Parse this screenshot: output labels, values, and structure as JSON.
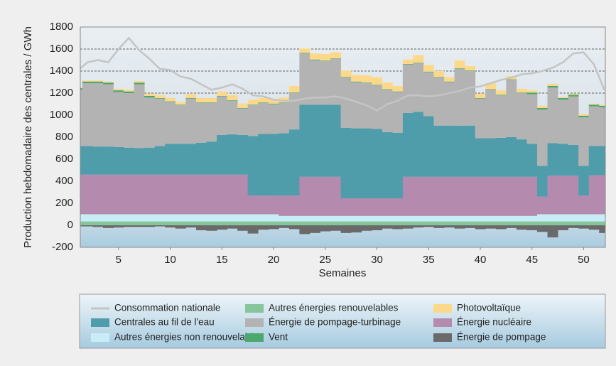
{
  "chart_data": {
    "type": "stacked-step-area",
    "y_label": "Production hebdomadaire des centrales / GWh",
    "x_label": "Semaines",
    "x": [
      1,
      2,
      3,
      4,
      5,
      6,
      7,
      8,
      9,
      10,
      11,
      12,
      13,
      14,
      15,
      16,
      17,
      18,
      19,
      20,
      21,
      22,
      23,
      24,
      25,
      26,
      27,
      28,
      29,
      30,
      31,
      32,
      33,
      34,
      35,
      36,
      37,
      38,
      39,
      40,
      41,
      42,
      43,
      44,
      45,
      46,
      47,
      48,
      49,
      50,
      51,
      52
    ],
    "xlim": [
      1.3,
      52.1
    ],
    "xticks": [
      5,
      10,
      15,
      20,
      25,
      30,
      35,
      40,
      45,
      50
    ],
    "ylim": [
      -200,
      1800
    ],
    "yticks": [
      -200,
      0,
      200,
      400,
      600,
      800,
      1000,
      1200,
      1400,
      1600,
      1800
    ],
    "grid": true,
    "series": [
      {
        "name": "Consommation nationale",
        "type": "line",
        "color": "#c4c4c4",
        "values": [
          1400,
          1480,
          1500,
          1480,
          1600,
          1700,
          1590,
          1510,
          1420,
          1410,
          1350,
          1330,
          1280,
          1230,
          1250,
          1280,
          1240,
          1180,
          1170,
          1140,
          1130,
          1130,
          1150,
          1160,
          1160,
          1170,
          1150,
          1120,
          1090,
          1040,
          1100,
          1130,
          1180,
          1180,
          1170,
          1180,
          1200,
          1220,
          1250,
          1260,
          1290,
          1320,
          1340,
          1370,
          1380,
          1400,
          1430,
          1480,
          1560,
          1570,
          1460,
          1230
        ]
      },
      {
        "name": "Autres énergies renouvelables",
        "color": "#86c49a",
        "values": [
          35,
          35,
          35,
          35,
          35,
          35,
          35,
          35,
          35,
          35,
          35,
          35,
          35,
          35,
          35,
          35,
          35,
          35,
          35,
          35,
          35,
          35,
          35,
          35,
          35,
          35,
          35,
          35,
          35,
          35,
          35,
          35,
          35,
          35,
          35,
          35,
          35,
          35,
          35,
          35,
          35,
          35,
          35,
          35,
          35,
          35,
          35,
          35,
          35,
          35,
          35,
          35
        ]
      },
      {
        "name": "Photovoltaïque",
        "color": "#fcd98a",
        "values": [
          10,
          10,
          10,
          10,
          15,
          15,
          15,
          20,
          25,
          30,
          25,
          35,
          40,
          40,
          40,
          45,
          40,
          45,
          40,
          40,
          45,
          60,
          40,
          55,
          60,
          55,
          60,
          60,
          65,
          70,
          60,
          50,
          40,
          70,
          60,
          55,
          40,
          70,
          40,
          40,
          55,
          40,
          30,
          35,
          20,
          20,
          20,
          10,
          10,
          15,
          10,
          10
        ]
      },
      {
        "name": "Centrales au fil de l'eau",
        "color": "#4f9daa",
        "values": [
          260,
          260,
          255,
          255,
          250,
          245,
          240,
          245,
          260,
          280,
          280,
          280,
          290,
          300,
          360,
          365,
          360,
          540,
          560,
          560,
          565,
          600,
          655,
          655,
          655,
          655,
          640,
          635,
          635,
          630,
          600,
          595,
          580,
          590,
          550,
          465,
          465,
          465,
          465,
          350,
          350,
          355,
          360,
          340,
          300,
          280,
          295,
          290,
          280,
          270,
          265,
          265
        ]
      },
      {
        "name": "Énergie de pompage-turbinage",
        "color": "#b3b3b3",
        "values": [
          510,
          570,
          575,
          565,
          500,
          495,
          580,
          455,
          430,
          380,
          350,
          410,
          360,
          350,
          350,
          305,
          240,
          280,
          280,
          270,
          275,
          330,
          465,
          405,
          395,
          415,
          455,
          420,
          410,
          395,
          385,
          370,
          440,
          440,
          400,
          435,
          395,
          515,
          495,
          360,
          440,
          385,
          520,
          420,
          450,
          510,
          505,
          400,
          440,
          440,
          360,
          350
        ]
      },
      {
        "name": "Énergie nucléaire",
        "color": "#b48aaf",
        "values": [
          360,
          360,
          360,
          360,
          360,
          360,
          360,
          360,
          360,
          360,
          360,
          360,
          360,
          360,
          360,
          360,
          360,
          170,
          170,
          170,
          185,
          185,
          355,
          355,
          355,
          355,
          160,
          160,
          160,
          160,
          160,
          160,
          355,
          355,
          355,
          355,
          355,
          355,
          355,
          355,
          355,
          355,
          355,
          355,
          355,
          160,
          350,
          350,
          350,
          170,
          355,
          355
        ]
      },
      {
        "name": "Autres énergies non renouvelables",
        "color": "#c9edf6",
        "values": [
          65,
          65,
          65,
          65,
          65,
          65,
          65,
          65,
          65,
          65,
          65,
          65,
          65,
          65,
          65,
          65,
          65,
          65,
          65,
          65,
          50,
          50,
          50,
          50,
          50,
          50,
          50,
          50,
          50,
          50,
          50,
          50,
          50,
          50,
          50,
          50,
          50,
          50,
          50,
          50,
          50,
          50,
          50,
          50,
          50,
          65,
          65,
          65,
          65,
          65,
          65,
          65
        ]
      },
      {
        "name": "Vent",
        "color": "#4aa86c",
        "values": [
          15,
          15,
          15,
          15,
          15,
          15,
          15,
          15,
          5,
          5,
          5,
          5,
          5,
          5,
          5,
          5,
          5,
          5,
          5,
          5,
          5,
          5,
          5,
          5,
          5,
          5,
          5,
          5,
          5,
          5,
          5,
          5,
          5,
          5,
          5,
          5,
          5,
          5,
          5,
          5,
          5,
          5,
          5,
          5,
          15,
          15,
          15,
          15,
          15,
          15,
          15,
          15
        ]
      },
      {
        "name": "Énergie de pompage",
        "color": "#6a6a6a",
        "values": [
          -10,
          -10,
          -15,
          -25,
          -20,
          -15,
          -15,
          -15,
          -10,
          -20,
          -30,
          -20,
          -45,
          -50,
          -40,
          -30,
          -50,
          -75,
          -40,
          -35,
          -25,
          -35,
          -80,
          -70,
          -55,
          -50,
          -70,
          -65,
          -50,
          -45,
          -30,
          -35,
          -30,
          -20,
          -15,
          -25,
          -20,
          -30,
          -25,
          -35,
          -30,
          -35,
          -25,
          -40,
          -45,
          -60,
          -110,
          -45,
          -25,
          -30,
          -40,
          -70
        ]
      }
    ]
  }
}
